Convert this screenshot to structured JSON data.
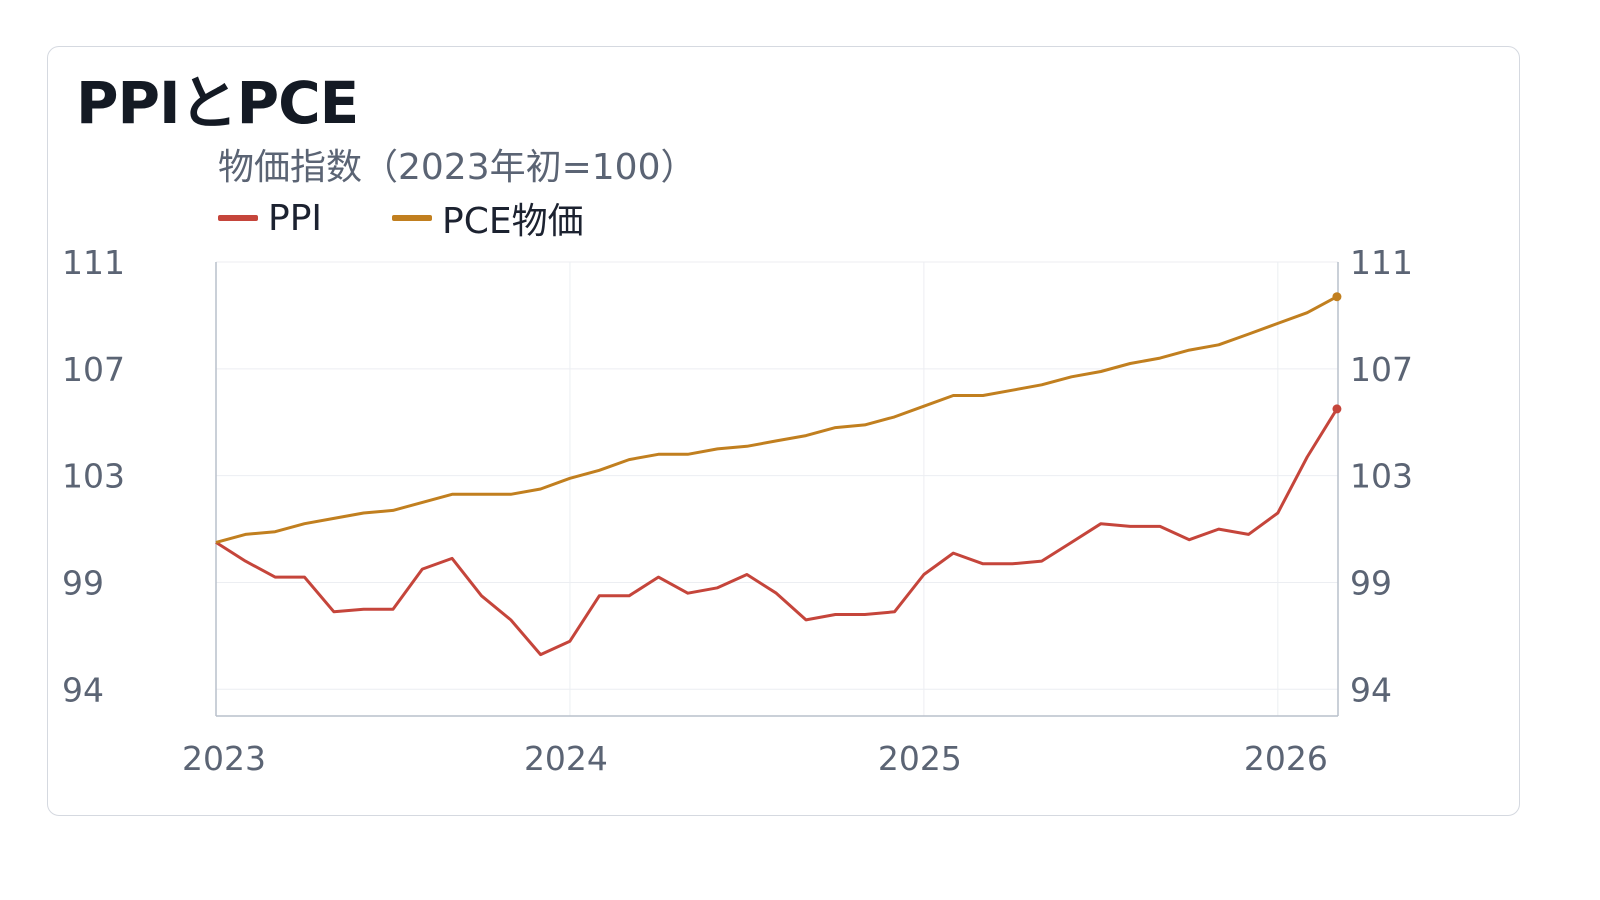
{
  "title": "PPIとPCE",
  "subtitle": "物価指数（2023年初=100）",
  "colors": {
    "ppi": "#c5453b",
    "pce": "#c17f1f",
    "axis": "#b9c0cb",
    "grid": "#eceef2"
  },
  "chart_data": {
    "type": "line",
    "title": "PPIとPCE",
    "ylabel": "物価指数（2023年初=100）",
    "ylim": [
      94,
      111
    ],
    "xlim": [
      2023,
      2026.17
    ],
    "yticks": [
      "111",
      "107",
      "103",
      "99",
      "94"
    ],
    "xticks": [
      "2023",
      "2024",
      "2025",
      "2026"
    ],
    "legend_position": "top-left",
    "grid": true,
    "series": [
      {
        "name": "PPI",
        "color": "#c5453b",
        "x": [
          2023.0,
          2023.083,
          2023.167,
          2023.25,
          2023.333,
          2023.417,
          2023.5,
          2023.583,
          2023.667,
          2023.75,
          2023.833,
          2023.917,
          2024.0,
          2024.083,
          2024.167,
          2024.25,
          2024.333,
          2024.417,
          2024.5,
          2024.583,
          2024.667,
          2024.75,
          2024.833,
          2024.917,
          2025.0,
          2025.083,
          2025.167,
          2025.25,
          2025.333,
          2025.417,
          2025.5,
          2025.583,
          2025.667,
          2025.75,
          2025.833,
          2025.917,
          2026.0,
          2026.083,
          2026.167
        ],
        "values": [
          100.5,
          99.8,
          99.2,
          99.2,
          97.9,
          98.0,
          98.0,
          99.5,
          99.9,
          98.5,
          97.6,
          96.3,
          96.8,
          98.5,
          98.5,
          99.2,
          98.6,
          98.8,
          99.3,
          98.6,
          97.6,
          97.8,
          97.8,
          97.9,
          99.3,
          100.1,
          99.7,
          99.7,
          99.8,
          100.5,
          101.2,
          101.1,
          101.1,
          100.6,
          101.0,
          100.8,
          101.6,
          103.7,
          105.5
        ]
      },
      {
        "name": "PCE物価",
        "color": "#c17f1f",
        "x": [
          2023.0,
          2023.083,
          2023.167,
          2023.25,
          2023.333,
          2023.417,
          2023.5,
          2023.583,
          2023.667,
          2023.75,
          2023.833,
          2023.917,
          2024.0,
          2024.083,
          2024.167,
          2024.25,
          2024.333,
          2024.417,
          2024.5,
          2024.583,
          2024.667,
          2024.75,
          2024.833,
          2024.917,
          2025.0,
          2025.083,
          2025.167,
          2025.25,
          2025.333,
          2025.417,
          2025.5,
          2025.583,
          2025.667,
          2025.75,
          2025.833,
          2025.917,
          2026.0,
          2026.083,
          2026.167
        ],
        "values": [
          100.5,
          100.8,
          100.9,
          101.2,
          101.4,
          101.6,
          101.7,
          102.0,
          102.3,
          102.3,
          102.3,
          102.5,
          102.9,
          103.2,
          103.6,
          103.8,
          103.8,
          104.0,
          104.1,
          104.3,
          104.5,
          104.8,
          104.9,
          105.2,
          105.6,
          106.0,
          106.0,
          106.2,
          106.4,
          106.7,
          106.9,
          107.2,
          107.4,
          107.7,
          107.9,
          108.3,
          108.7,
          109.1,
          109.7
        ]
      }
    ]
  }
}
